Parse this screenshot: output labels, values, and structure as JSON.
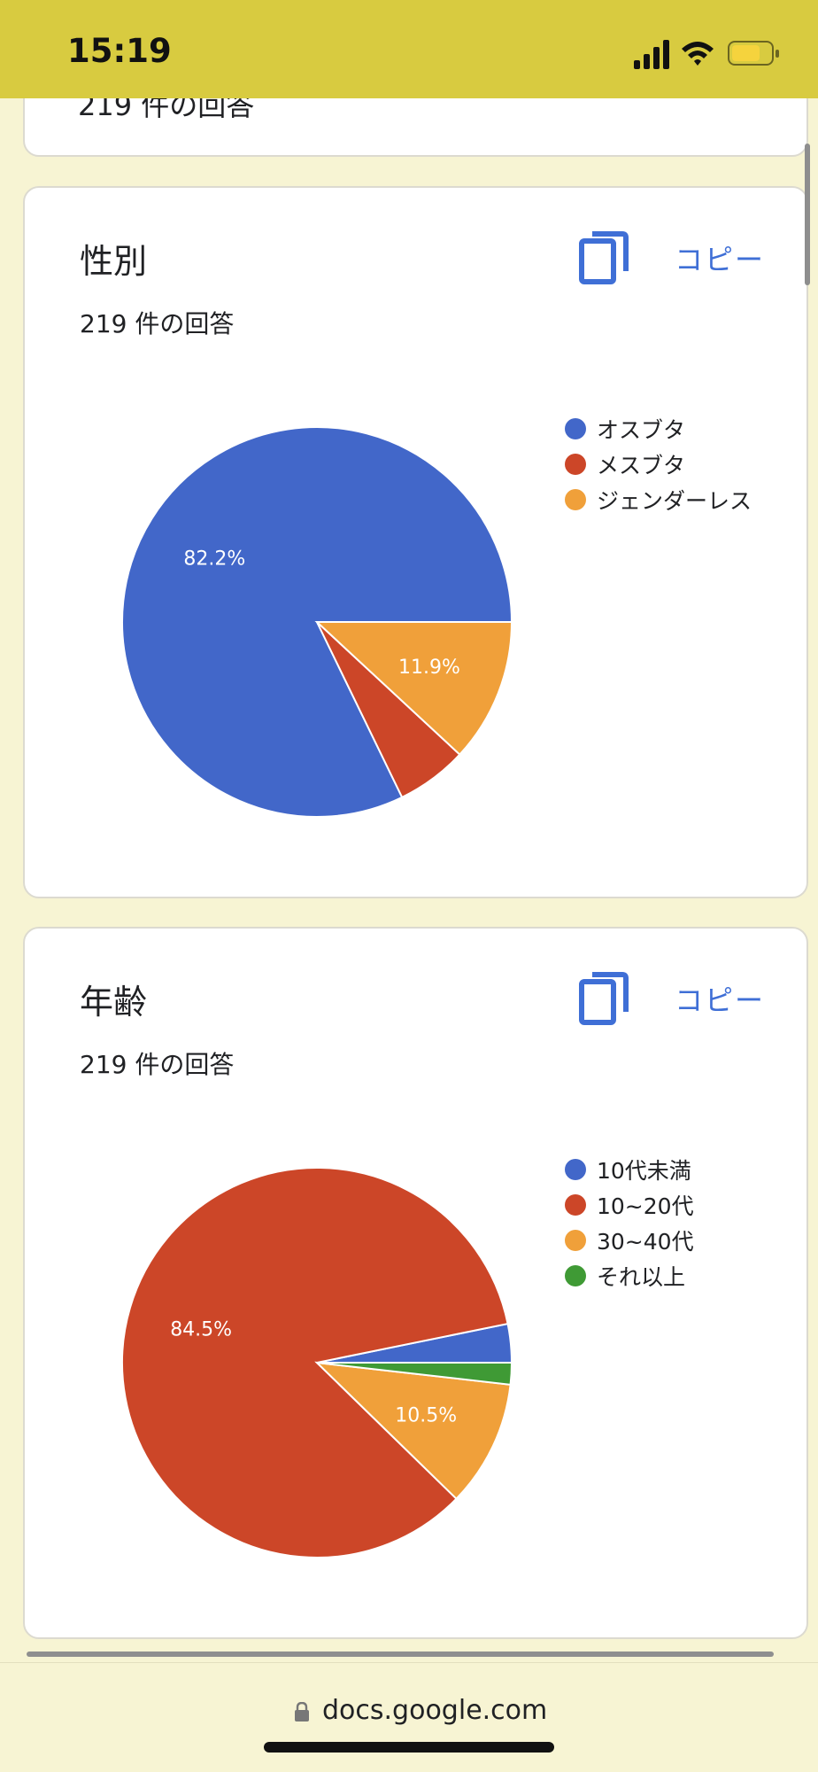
{
  "status_bar": {
    "time": "15:19"
  },
  "top_card": {
    "partial_text": "219 件の回答"
  },
  "sections": [
    {
      "title": "性別",
      "response_count": "219 件の回答",
      "copy_label": "コピー",
      "chart_data": {
        "type": "pie",
        "title": "性別",
        "categories": [
          "オスブタ",
          "メスブタ",
          "ジェンダーレス"
        ],
        "values": [
          82.2,
          5.9,
          11.9
        ],
        "value_labels": [
          "82.2%",
          "",
          "11.9%"
        ],
        "colors": [
          "#4267c9",
          "#cc4628",
          "#f0a03a"
        ],
        "legend": "right"
      }
    },
    {
      "title": "年齢",
      "response_count": "219 件の回答",
      "copy_label": "コピー",
      "chart_data": {
        "type": "pie",
        "title": "年齢",
        "categories": [
          "10代未満",
          "10~20代",
          "30~40代",
          "それ以上"
        ],
        "values": [
          3.2,
          84.5,
          10.5,
          1.8
        ],
        "value_labels": [
          "",
          "84.5%",
          "10.5%",
          ""
        ],
        "colors": [
          "#4267c9",
          "#cc4628",
          "#f0a03a",
          "#3f9a35"
        ],
        "legend": "right"
      }
    }
  ],
  "url_bar": {
    "url": "docs.google.com"
  }
}
